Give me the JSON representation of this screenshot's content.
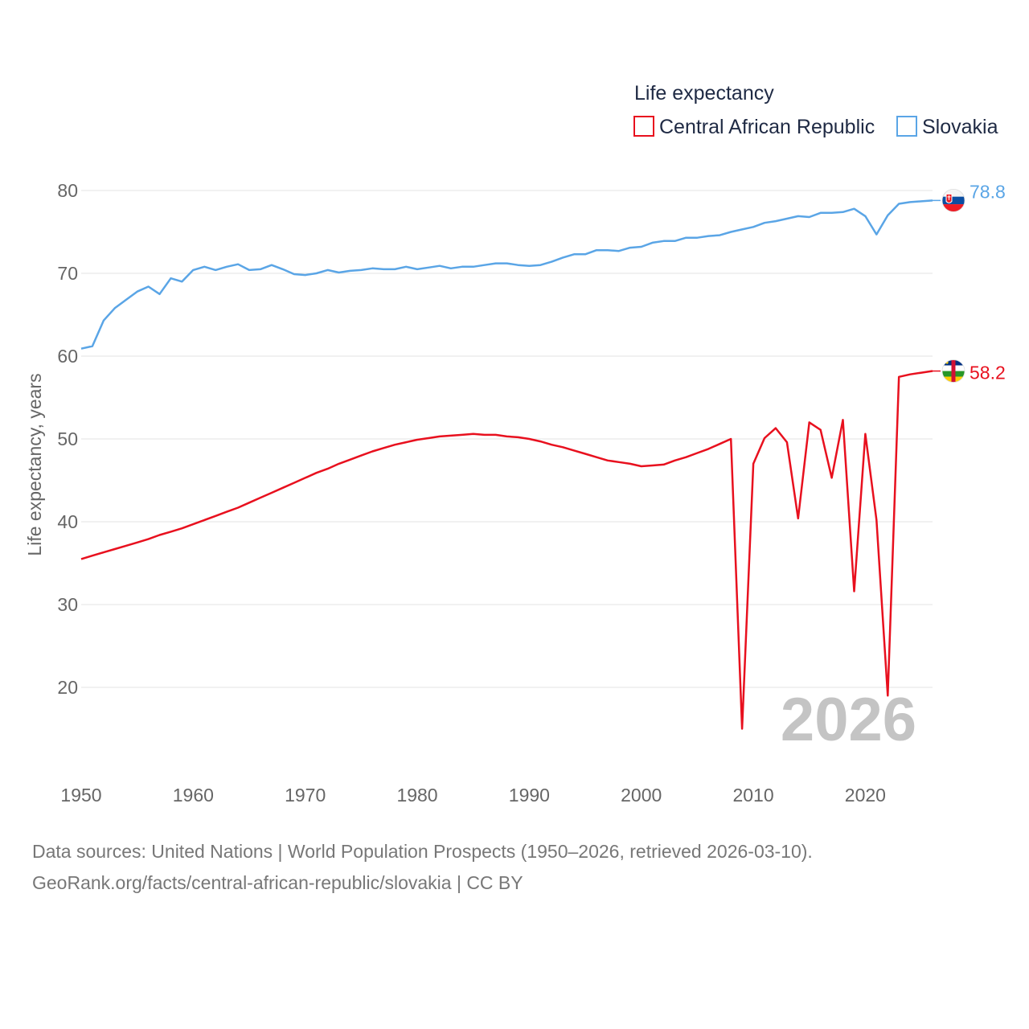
{
  "chart_data": {
    "type": "line",
    "title": "Life expectancy",
    "xlabel": "",
    "ylabel": "Life expectancy, years",
    "xlim": [
      1950,
      2026
    ],
    "ylim": [
      11,
      84
    ],
    "x_ticks": [
      1950,
      1960,
      1970,
      1980,
      1990,
      2000,
      2010,
      2020
    ],
    "y_ticks": [
      20,
      30,
      40,
      50,
      60,
      70,
      80
    ],
    "grid": true,
    "legend_position": "top-right",
    "watermark_year": "2026",
    "x": [
      1950,
      1951,
      1952,
      1953,
      1954,
      1955,
      1956,
      1957,
      1958,
      1959,
      1960,
      1961,
      1962,
      1963,
      1964,
      1965,
      1966,
      1967,
      1968,
      1969,
      1970,
      1971,
      1972,
      1973,
      1974,
      1975,
      1976,
      1977,
      1978,
      1979,
      1980,
      1981,
      1982,
      1983,
      1984,
      1985,
      1986,
      1987,
      1988,
      1989,
      1990,
      1991,
      1992,
      1993,
      1994,
      1995,
      1996,
      1997,
      1998,
      1999,
      2000,
      2001,
      2002,
      2003,
      2004,
      2005,
      2006,
      2007,
      2008,
      2009,
      2010,
      2011,
      2012,
      2013,
      2014,
      2015,
      2016,
      2017,
      2018,
      2019,
      2020,
      2021,
      2022,
      2023,
      2024,
      2025,
      2026
    ],
    "series": [
      {
        "name": "Central African Republic",
        "color": "#e8101e",
        "end_label": "58.2",
        "flag": "central-african-republic",
        "values": [
          35.5,
          35.9,
          36.3,
          36.7,
          37.1,
          37.5,
          37.9,
          38.4,
          38.8,
          39.2,
          39.7,
          40.2,
          40.7,
          41.2,
          41.7,
          42.3,
          42.9,
          43.5,
          44.1,
          44.7,
          45.3,
          45.9,
          46.4,
          47.0,
          47.5,
          48.0,
          48.5,
          48.9,
          49.3,
          49.6,
          49.9,
          50.1,
          50.3,
          50.4,
          50.5,
          50.6,
          50.5,
          50.5,
          50.3,
          50.2,
          50.0,
          49.7,
          49.3,
          49.0,
          48.6,
          48.2,
          47.8,
          47.4,
          47.2,
          47.0,
          46.7,
          46.8,
          46.9,
          47.4,
          47.8,
          48.3,
          48.8,
          49.4,
          50.0,
          15.0,
          47.0,
          50.1,
          51.3,
          49.6,
          40.4,
          52.0,
          51.1,
          45.3,
          52.3,
          31.6,
          50.6,
          40.2,
          19.0,
          57.5,
          57.8,
          58.0,
          58.2
        ]
      },
      {
        "name": "Slovakia",
        "color": "#5aa5e6",
        "end_label": "78.8",
        "flag": "slovakia",
        "values": [
          60.9,
          61.2,
          64.3,
          65.8,
          66.8,
          67.8,
          68.4,
          67.5,
          69.4,
          69.0,
          70.4,
          70.8,
          70.4,
          70.8,
          71.1,
          70.4,
          70.5,
          71.0,
          70.5,
          69.9,
          69.8,
          70.0,
          70.4,
          70.1,
          70.3,
          70.4,
          70.6,
          70.5,
          70.5,
          70.8,
          70.5,
          70.7,
          70.9,
          70.6,
          70.8,
          70.8,
          71.0,
          71.2,
          71.2,
          71.0,
          70.9,
          71.0,
          71.4,
          71.9,
          72.3,
          72.3,
          72.8,
          72.8,
          72.7,
          73.1,
          73.2,
          73.7,
          73.9,
          73.9,
          74.3,
          74.3,
          74.5,
          74.6,
          75.0,
          75.3,
          75.6,
          76.1,
          76.3,
          76.6,
          76.9,
          76.8,
          77.3,
          77.3,
          77.4,
          77.8,
          76.9,
          74.7,
          77.0,
          78.4,
          78.6,
          78.7,
          78.8
        ]
      }
    ]
  },
  "source": {
    "line1": "Data sources: United Nations | World Population Prospects (1950–2026, retrieved 2026-03-10).",
    "line2": "GeoRank.org/facts/central-african-republic/slovakia | CC BY"
  }
}
